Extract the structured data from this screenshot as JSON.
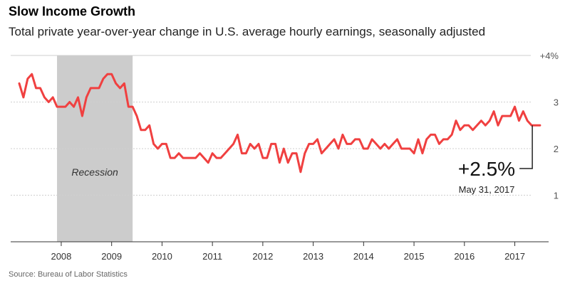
{
  "header": {
    "title": "Slow Income Growth",
    "subtitle": "Total private year-over-year change in U.S. average hourly earnings, seasonally adjusted"
  },
  "footer": {
    "source": "Source: Bureau of Labor Statistics"
  },
  "colors": {
    "line": "#f04040",
    "recession": "#cccccc",
    "grid": "#cfcfcf",
    "axis": "#333333",
    "tick_text": "#555555"
  },
  "chart_data": {
    "type": "line",
    "title": "Slow Income Growth",
    "subtitle": "Total private year-over-year change in U.S. average hourly earnings, seasonally adjusted",
    "xlabel": "",
    "ylabel": "",
    "ylim": [
      0,
      4
    ],
    "xlim": [
      "2007-03",
      "2017-06"
    ],
    "grid": true,
    "y_ticks": [
      {
        "value": 4,
        "label": "+4%"
      },
      {
        "value": 3,
        "label": "3"
      },
      {
        "value": 2,
        "label": "2"
      },
      {
        "value": 1,
        "label": "1"
      }
    ],
    "x_ticks": [
      "2008",
      "2009",
      "2010",
      "2011",
      "2012",
      "2013",
      "2014",
      "2015",
      "2016",
      "2017"
    ],
    "shaded_regions": [
      {
        "label": "Recession",
        "start": "2007-12",
        "end": "2009-06"
      }
    ],
    "annotation": {
      "value_label": "+2.5%",
      "date_label": "May 31, 2017",
      "x": "2017-05",
      "y": 2.5
    },
    "series": [
      {
        "x_start": "2007-03",
        "frequency": "monthly",
        "values": [
          3.4,
          3.1,
          3.5,
          3.6,
          3.3,
          3.3,
          3.1,
          3.0,
          3.1,
          2.9,
          2.9,
          2.9,
          3.0,
          2.9,
          3.1,
          2.7,
          3.1,
          3.3,
          3.3,
          3.3,
          3.5,
          3.6,
          3.6,
          3.4,
          3.3,
          3.4,
          2.9,
          2.9,
          2.7,
          2.4,
          2.4,
          2.5,
          2.1,
          2.0,
          2.1,
          2.1,
          1.8,
          1.8,
          1.9,
          1.8,
          1.8,
          1.8,
          1.8,
          1.9,
          1.8,
          1.7,
          1.9,
          1.8,
          1.8,
          1.9,
          2.0,
          2.1,
          2.3,
          1.9,
          1.9,
          2.1,
          2.0,
          2.1,
          1.8,
          1.8,
          2.1,
          2.1,
          1.7,
          2.0,
          1.7,
          1.9,
          1.9,
          1.5,
          1.9,
          2.1,
          2.1,
          2.2,
          1.9,
          2.0,
          2.1,
          2.2,
          2.0,
          2.3,
          2.1,
          2.1,
          2.2,
          2.2,
          2.0,
          2.0,
          2.2,
          2.1,
          2.0,
          2.1,
          2.0,
          2.1,
          2.2,
          2.0,
          2.0,
          2.0,
          1.9,
          2.2,
          1.9,
          2.2,
          2.3,
          2.3,
          2.1,
          2.2,
          2.2,
          2.3,
          2.6,
          2.4,
          2.5,
          2.5,
          2.4,
          2.5,
          2.6,
          2.5,
          2.6,
          2.8,
          2.5,
          2.7,
          2.7,
          2.7,
          2.9,
          2.6,
          2.8,
          2.6,
          2.5,
          2.5,
          2.5
        ]
      }
    ]
  }
}
